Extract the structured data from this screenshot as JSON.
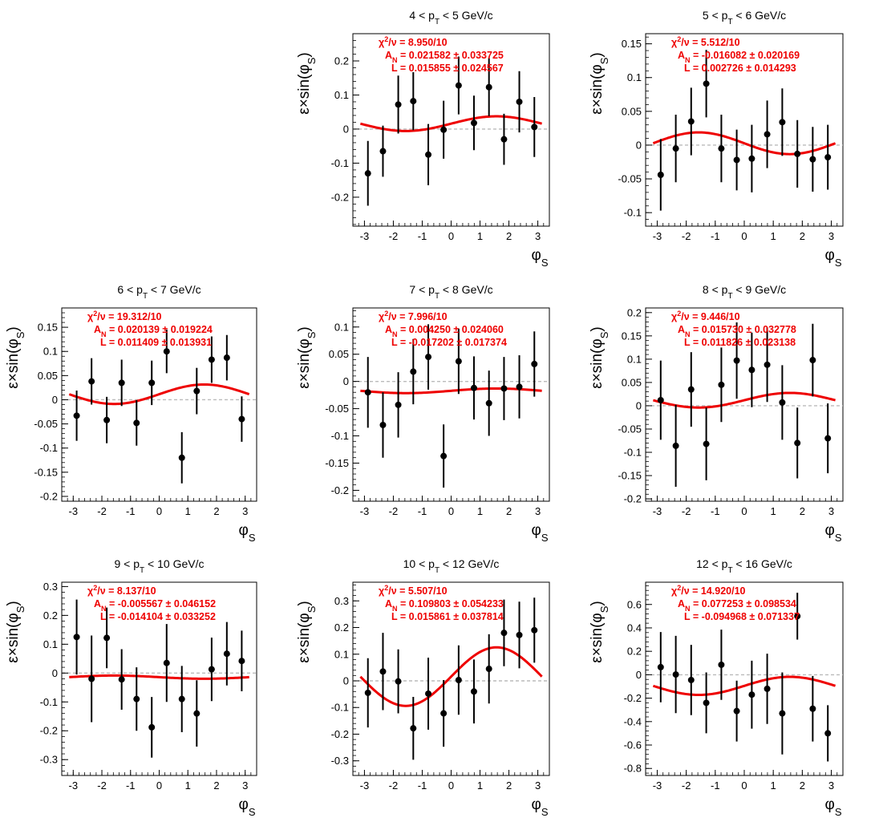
{
  "figure": {
    "background": "#ffffff",
    "fit_color": "#ee0000",
    "point_color": "#000000",
    "zero_line_color": "#bbbbbb"
  },
  "chart_data": [
    {
      "type": "scatter",
      "title": "4 < p_T < 5 GeV/c",
      "xlabel": "φ_S",
      "ylabel": "ε×sin(φ_S)",
      "xlim": [
        -3.4,
        3.4
      ],
      "ylim": [
        -0.285,
        0.28
      ],
      "xticks": [
        -3,
        -2,
        -1,
        0,
        1,
        2,
        3
      ],
      "yticks": [
        -0.2,
        -0.1,
        0,
        0.1,
        0.2
      ],
      "ytick_labels": [
        "-0.2",
        "-0.1",
        "0",
        "0.1",
        "0.2"
      ],
      "stats": {
        "chi2": "χ²/ν = 8.950/10",
        "an": "A_N = 0.021582 ± 0.033725",
        "l": "L = 0.015855 ± 0.024567"
      },
      "fit": {
        "A": 0.021582,
        "L": 0.015855
      },
      "x": [
        -2.88,
        -2.36,
        -1.83,
        -1.31,
        -0.79,
        -0.26,
        0.26,
        0.79,
        1.31,
        1.83,
        2.36,
        2.88
      ],
      "y": [
        -0.13,
        -0.065,
        0.072,
        0.082,
        -0.075,
        -0.002,
        0.128,
        0.018,
        0.123,
        -0.03,
        0.08,
        0.006
      ],
      "yerr": [
        0.095,
        0.075,
        0.085,
        0.085,
        0.09,
        0.085,
        0.085,
        0.08,
        0.085,
        0.075,
        0.09,
        0.088
      ]
    },
    {
      "type": "scatter",
      "title": "5 < p_T < 6 GeV/c",
      "xlabel": "φ_S",
      "ylabel": "ε×sin(φ_S)",
      "xlim": [
        -3.4,
        3.4
      ],
      "ylim": [
        -0.12,
        0.165
      ],
      "xticks": [
        -3,
        -2,
        -1,
        0,
        1,
        2,
        3
      ],
      "yticks": [
        -0.1,
        -0.05,
        0,
        0.05,
        0.1,
        0.15
      ],
      "ytick_labels": [
        "-0.1",
        "-0.05",
        "0",
        "0.05",
        "0.1",
        "0.15"
      ],
      "stats": {
        "chi2": "χ²/ν = 5.512/10",
        "an": "A_N = -0.016082 ± 0.020169",
        "l": "L = 0.002726 ± 0.014293"
      },
      "fit": {
        "A": -0.016082,
        "L": 0.002726
      },
      "x": [
        -2.88,
        -2.36,
        -1.83,
        -1.31,
        -0.79,
        -0.26,
        0.26,
        0.79,
        1.31,
        1.83,
        2.36,
        2.88
      ],
      "y": [
        -0.044,
        -0.005,
        0.035,
        0.091,
        -0.005,
        -0.022,
        -0.02,
        0.016,
        0.034,
        -0.013,
        -0.021,
        -0.018
      ],
      "yerr": [
        0.053,
        0.05,
        0.05,
        0.05,
        0.05,
        0.045,
        0.05,
        0.05,
        0.05,
        0.05,
        0.048,
        0.048
      ]
    },
    {
      "type": "scatter",
      "title": "6 < p_T < 7 GeV/c",
      "xlabel": "φ_S",
      "ylabel": "ε×sin(φ_S)",
      "xlim": [
        -3.4,
        3.4
      ],
      "ylim": [
        -0.21,
        0.19
      ],
      "xticks": [
        -3,
        -2,
        -1,
        0,
        1,
        2,
        3
      ],
      "yticks": [
        -0.2,
        -0.15,
        -0.1,
        -0.05,
        0,
        0.05,
        0.1,
        0.15
      ],
      "ytick_labels": [
        "-0.2",
        "-0.15",
        "-0.1",
        "-0.05",
        "0",
        "0.05",
        "0.1",
        "0.15"
      ],
      "stats": {
        "chi2": "χ²/ν = 19.312/10",
        "an": "A_N = 0.020139 ± 0.019224",
        "l": "L = 0.011409 ± 0.013931"
      },
      "fit": {
        "A": 0.020139,
        "L": 0.011409
      },
      "x": [
        -2.88,
        -2.36,
        -1.83,
        -1.31,
        -0.79,
        -0.26,
        0.26,
        0.79,
        1.31,
        1.83,
        2.36,
        2.88
      ],
      "y": [
        -0.033,
        0.038,
        -0.042,
        0.035,
        -0.048,
        0.035,
        0.1,
        -0.12,
        0.018,
        0.083,
        0.087,
        -0.04
      ],
      "yerr": [
        0.052,
        0.048,
        0.048,
        0.048,
        0.047,
        0.046,
        0.045,
        0.053,
        0.048,
        0.048,
        0.047,
        0.047
      ]
    },
    {
      "type": "scatter",
      "title": "7 < p_T < 8 GeV/c",
      "xlabel": "φ_S",
      "ylabel": "ε×sin(φ_S)",
      "xlim": [
        -3.4,
        3.4
      ],
      "ylim": [
        -0.22,
        0.135
      ],
      "xticks": [
        -3,
        -2,
        -1,
        0,
        1,
        2,
        3
      ],
      "yticks": [
        -0.2,
        -0.15,
        -0.1,
        -0.05,
        0,
        0.05,
        0.1
      ],
      "ytick_labels": [
        "-0.2",
        "-0.15",
        "-0.1",
        "-0.05",
        "0",
        "0.05",
        "0.1"
      ],
      "stats": {
        "chi2": "χ²/ν = 7.996/10",
        "an": "A_N = 0.004250 ± 0.024060",
        "l": "L = -0.017202 ± 0.017374"
      },
      "fit": {
        "A": 0.00425,
        "L": -0.017202
      },
      "x": [
        -2.88,
        -2.36,
        -1.83,
        -1.31,
        -0.79,
        -0.26,
        0.26,
        0.79,
        1.31,
        1.83,
        2.36,
        2.88
      ],
      "y": [
        -0.02,
        -0.08,
        -0.043,
        0.018,
        0.045,
        -0.137,
        0.037,
        -0.012,
        -0.04,
        -0.013,
        -0.01,
        0.032
      ],
      "yerr": [
        0.065,
        0.06,
        0.06,
        0.06,
        0.06,
        0.058,
        0.06,
        0.058,
        0.06,
        0.058,
        0.058,
        0.06
      ]
    },
    {
      "type": "scatter",
      "title": "8 < p_T < 9 GeV/c",
      "xlabel": "φ_S",
      "ylabel": "ε×sin(φ_S)",
      "xlim": [
        -3.4,
        3.4
      ],
      "ylim": [
        -0.205,
        0.21
      ],
      "xticks": [
        -3,
        -2,
        -1,
        0,
        1,
        2,
        3
      ],
      "yticks": [
        -0.2,
        -0.15,
        -0.1,
        -0.05,
        0,
        0.05,
        0.1,
        0.15,
        0.2
      ],
      "ytick_labels": [
        "-0.2",
        "-0.15",
        "-0.1",
        "-0.05",
        "0",
        "0.05",
        "0.1",
        "0.15",
        "0.2"
      ],
      "stats": {
        "chi2": "χ²/ν = 9.446/10",
        "an": "A_N = 0.015730 ± 0.032778",
        "l": "L = 0.011826 ± 0.023138"
      },
      "fit": {
        "A": 0.01573,
        "L": 0.011826
      },
      "x": [
        -2.88,
        -2.36,
        -1.83,
        -1.31,
        -0.79,
        -0.26,
        0.26,
        0.79,
        1.31,
        1.83,
        2.36,
        2.88
      ],
      "y": [
        0.012,
        -0.086,
        0.035,
        -0.082,
        0.045,
        0.097,
        0.077,
        0.088,
        0.007,
        -0.08,
        0.098,
        -0.07
      ],
      "yerr": [
        0.085,
        0.088,
        0.08,
        0.078,
        0.08,
        0.082,
        0.08,
        0.08,
        0.08,
        0.076,
        0.078,
        0.075
      ]
    },
    {
      "type": "scatter",
      "title": "9 < p_T < 10 GeV/c",
      "xlabel": "φ_S",
      "ylabel": "ε×sin(φ_S)",
      "xlim": [
        -3.4,
        3.4
      ],
      "ylim": [
        -0.355,
        0.315
      ],
      "xticks": [
        -3,
        -2,
        -1,
        0,
        1,
        2,
        3
      ],
      "yticks": [
        -0.3,
        -0.2,
        -0.1,
        0,
        0.1,
        0.2,
        0.3
      ],
      "ytick_labels": [
        "-0.3",
        "-0.2",
        "-0.1",
        "0",
        "0.1",
        "0.2",
        "0.3"
      ],
      "stats": {
        "chi2": "χ²/ν = 8.137/10",
        "an": "A_N = -0.005567 ± 0.046152",
        "l": "L = -0.014104 ± 0.033252"
      },
      "fit": {
        "A": -0.005567,
        "L": -0.014104
      },
      "x": [
        -2.88,
        -2.36,
        -1.83,
        -1.31,
        -0.79,
        -0.26,
        0.26,
        0.79,
        1.31,
        1.83,
        2.36,
        2.88
      ],
      "y": [
        0.125,
        -0.02,
        0.122,
        -0.022,
        -0.09,
        -0.188,
        0.035,
        -0.09,
        -0.14,
        0.013,
        0.067,
        0.042
      ],
      "yerr": [
        0.13,
        0.15,
        0.105,
        0.105,
        0.11,
        0.105,
        0.135,
        0.115,
        0.115,
        0.11,
        0.11,
        0.105
      ]
    },
    {
      "type": "scatter",
      "title": "10 < p_T < 12 GeV/c",
      "xlabel": "φ_S",
      "ylabel": "ε×sin(φ_S)",
      "xlim": [
        -3.4,
        3.4
      ],
      "ylim": [
        -0.355,
        0.37
      ],
      "xticks": [
        -3,
        -2,
        -1,
        0,
        1,
        2,
        3
      ],
      "yticks": [
        -0.3,
        -0.2,
        -0.1,
        0,
        0.1,
        0.2,
        0.3
      ],
      "ytick_labels": [
        "-0.3",
        "-0.2",
        "-0.1",
        "0",
        "0.1",
        "0.2",
        "0.3"
      ],
      "stats": {
        "chi2": "χ²/ν = 5.507/10",
        "an": "A_N = 0.109803 ± 0.054233",
        "l": "L = 0.015861 ± 0.037814"
      },
      "fit": {
        "A": 0.109803,
        "L": 0.015861
      },
      "x": [
        -2.88,
        -2.36,
        -1.83,
        -1.31,
        -0.79,
        -0.26,
        0.26,
        0.79,
        1.31,
        1.83,
        2.36,
        2.88
      ],
      "y": [
        -0.045,
        0.035,
        -0.002,
        -0.178,
        -0.048,
        -0.122,
        0.003,
        -0.04,
        0.045,
        0.18,
        0.172,
        0.19
      ],
      "yerr": [
        0.13,
        0.145,
        0.12,
        0.118,
        0.135,
        0.125,
        0.13,
        0.12,
        0.13,
        0.125,
        0.125,
        0.122
      ]
    },
    {
      "type": "scatter",
      "title": "12 < p_T < 16 GeV/c",
      "xlabel": "φ_S",
      "ylabel": "ε×sin(φ_S)",
      "xlim": [
        -3.4,
        3.4
      ],
      "ylim": [
        -0.86,
        0.79
      ],
      "xticks": [
        -3,
        -2,
        -1,
        0,
        1,
        2,
        3
      ],
      "yticks": [
        -0.8,
        -0.6,
        -0.4,
        -0.2,
        0,
        0.2,
        0.4,
        0.6
      ],
      "ytick_labels": [
        "-0.8",
        "-0.6",
        "-0.4",
        "-0.2",
        "0",
        "0.2",
        "0.4",
        "0.6"
      ],
      "stats": {
        "chi2": "χ²/ν = 14.920/10",
        "an": "A_N = 0.077253 ± 0.098534",
        "l": "L = -0.094968 ± 0.071337"
      },
      "fit": {
        "A": 0.077253,
        "L": -0.094968
      },
      "x": [
        -2.88,
        -2.36,
        -1.83,
        -1.31,
        -0.79,
        -0.26,
        0.26,
        0.79,
        1.31,
        1.83,
        2.36,
        2.88
      ],
      "y": [
        0.065,
        0.002,
        -0.045,
        -0.24,
        0.085,
        -0.31,
        -0.17,
        -0.12,
        -0.33,
        0.5,
        -0.29,
        -0.5
      ],
      "yerr": [
        0.3,
        0.33,
        0.3,
        0.26,
        0.3,
        0.26,
        0.29,
        0.3,
        0.35,
        0.2,
        0.28,
        0.24
      ]
    }
  ]
}
